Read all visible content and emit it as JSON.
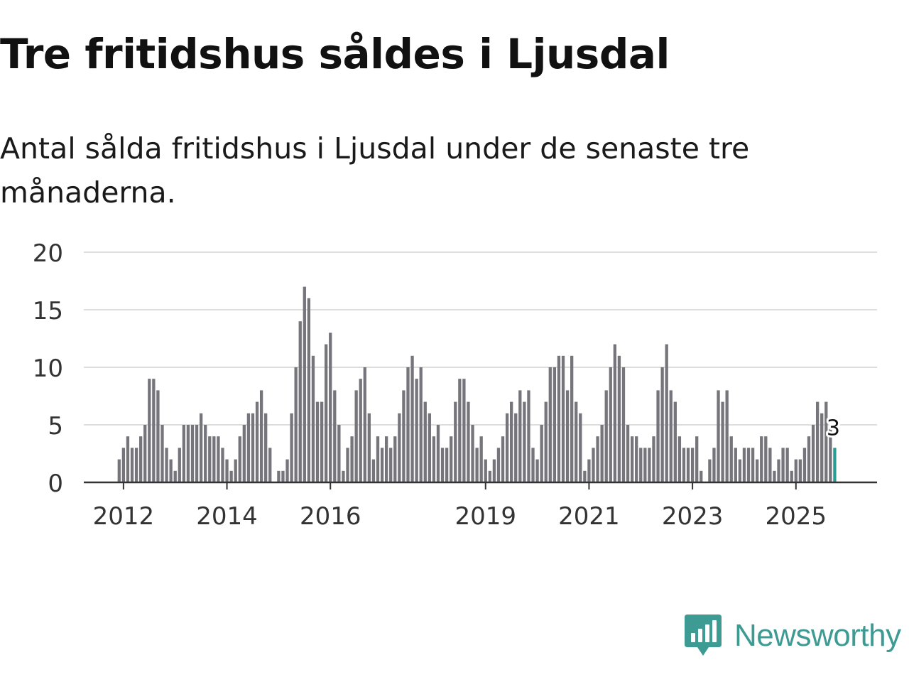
{
  "title": "Tre fritidshus såldes i Ljusdal",
  "subtitle": "Antal sålda fritidshus i Ljusdal under de senaste tre månaderna.",
  "brand": {
    "name": "Newsworthy",
    "color": "#3d9b93"
  },
  "colors": {
    "bar": "#76757c",
    "highlight": "#2a9d95",
    "grid": "#dddddd",
    "axis": "#333333",
    "tick_text": "#333333"
  },
  "chart_data": {
    "type": "bar",
    "title": "Tre fritidshus såldes i Ljusdal",
    "subtitle": "Antal sålda fritidshus i Ljusdal under de senaste tre månaderna.",
    "xlabel": "",
    "ylabel": "",
    "ylim": [
      0,
      20
    ],
    "yticks": [
      0,
      5,
      10,
      15,
      20
    ],
    "grid": true,
    "x_start": "2011-12",
    "frequency": "monthly",
    "x_tick_labels": [
      {
        "label": "2012",
        "index": 1
      },
      {
        "label": "2014",
        "index": 25
      },
      {
        "label": "2016",
        "index": 49
      },
      {
        "label": "2019",
        "index": 85
      },
      {
        "label": "2021",
        "index": 109
      },
      {
        "label": "2023",
        "index": 133
      },
      {
        "label": "2025",
        "index": 157
      }
    ],
    "values": [
      2,
      3,
      4,
      3,
      3,
      4,
      5,
      9,
      9,
      8,
      5,
      3,
      2,
      1,
      3,
      5,
      5,
      5,
      5,
      6,
      5,
      4,
      4,
      4,
      3,
      2,
      1,
      2,
      4,
      5,
      6,
      6,
      7,
      8,
      6,
      3,
      0,
      1,
      1,
      2,
      6,
      10,
      14,
      17,
      16,
      11,
      7,
      7,
      12,
      13,
      8,
      5,
      1,
      3,
      4,
      8,
      9,
      10,
      6,
      2,
      4,
      3,
      4,
      3,
      4,
      6,
      8,
      10,
      11,
      9,
      10,
      7,
      6,
      4,
      5,
      3,
      3,
      4,
      7,
      9,
      9,
      7,
      5,
      3,
      4,
      2,
      1,
      2,
      3,
      4,
      6,
      7,
      6,
      8,
      7,
      8,
      3,
      2,
      5,
      7,
      10,
      10,
      11,
      11,
      8,
      11,
      7,
      6,
      1,
      2,
      3,
      4,
      5,
      8,
      10,
      12,
      11,
      10,
      5,
      4,
      4,
      3,
      3,
      3,
      4,
      8,
      10,
      12,
      8,
      7,
      4,
      3,
      3,
      3,
      4,
      1,
      0,
      2,
      3,
      8,
      7,
      8,
      4,
      3,
      2,
      3,
      3,
      3,
      2,
      4,
      4,
      3,
      1,
      2,
      3,
      3,
      1,
      2,
      2,
      3,
      4,
      5,
      7,
      6,
      7,
      5,
      3
    ],
    "highlight_index": 166,
    "highlight_label": "3"
  }
}
